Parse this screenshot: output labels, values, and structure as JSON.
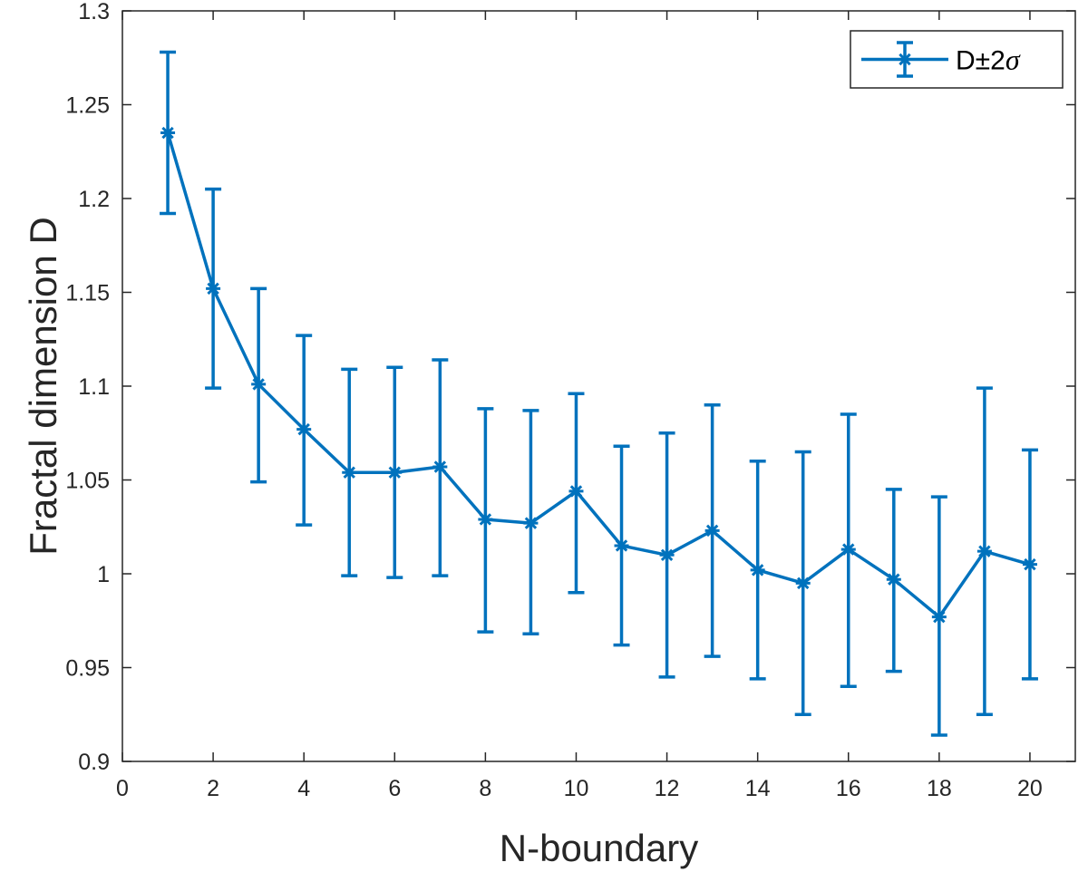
{
  "chart_data": {
    "type": "line",
    "error_bars": true,
    "xlabel": "N-boundary",
    "ylabel": "Fractal dimension D",
    "xlim": [
      0,
      21
    ],
    "ylim": [
      0.9,
      1.3
    ],
    "x_ticks": [
      "0",
      "2",
      "4",
      "6",
      "8",
      "10",
      "12",
      "14",
      "16",
      "18",
      "20"
    ],
    "y_ticks": [
      "0.9",
      "0.95",
      "1",
      "1.05",
      "1.1",
      "1.15",
      "1.2",
      "1.25",
      "1.3"
    ],
    "grid": false,
    "legend": {
      "position": "top-right",
      "label_main": "D±2",
      "label_symbol": "σ"
    },
    "series": [
      {
        "name": "D±2σ",
        "color": "#0072BD",
        "marker": "asterisk",
        "x": [
          1,
          2,
          3,
          4,
          5,
          6,
          7,
          8,
          9,
          10,
          11,
          12,
          13,
          14,
          15,
          16,
          17,
          18,
          19,
          20
        ],
        "y": [
          1.235,
          1.152,
          1.101,
          1.077,
          1.054,
          1.054,
          1.057,
          1.029,
          1.027,
          1.044,
          1.015,
          1.01,
          1.023,
          1.002,
          0.995,
          1.013,
          0.997,
          0.977,
          1.012,
          1.005
        ],
        "lower": [
          1.192,
          1.099,
          1.049,
          1.026,
          0.999,
          0.998,
          0.999,
          0.969,
          0.968,
          0.99,
          0.962,
          0.945,
          0.956,
          0.944,
          0.925,
          0.94,
          0.948,
          0.914,
          0.925,
          0.944
        ],
        "upper": [
          1.278,
          1.205,
          1.152,
          1.127,
          1.109,
          1.11,
          1.114,
          1.088,
          1.087,
          1.096,
          1.068,
          1.075,
          1.09,
          1.06,
          1.065,
          1.085,
          1.045,
          1.041,
          1.099,
          1.066
        ]
      }
    ]
  }
}
